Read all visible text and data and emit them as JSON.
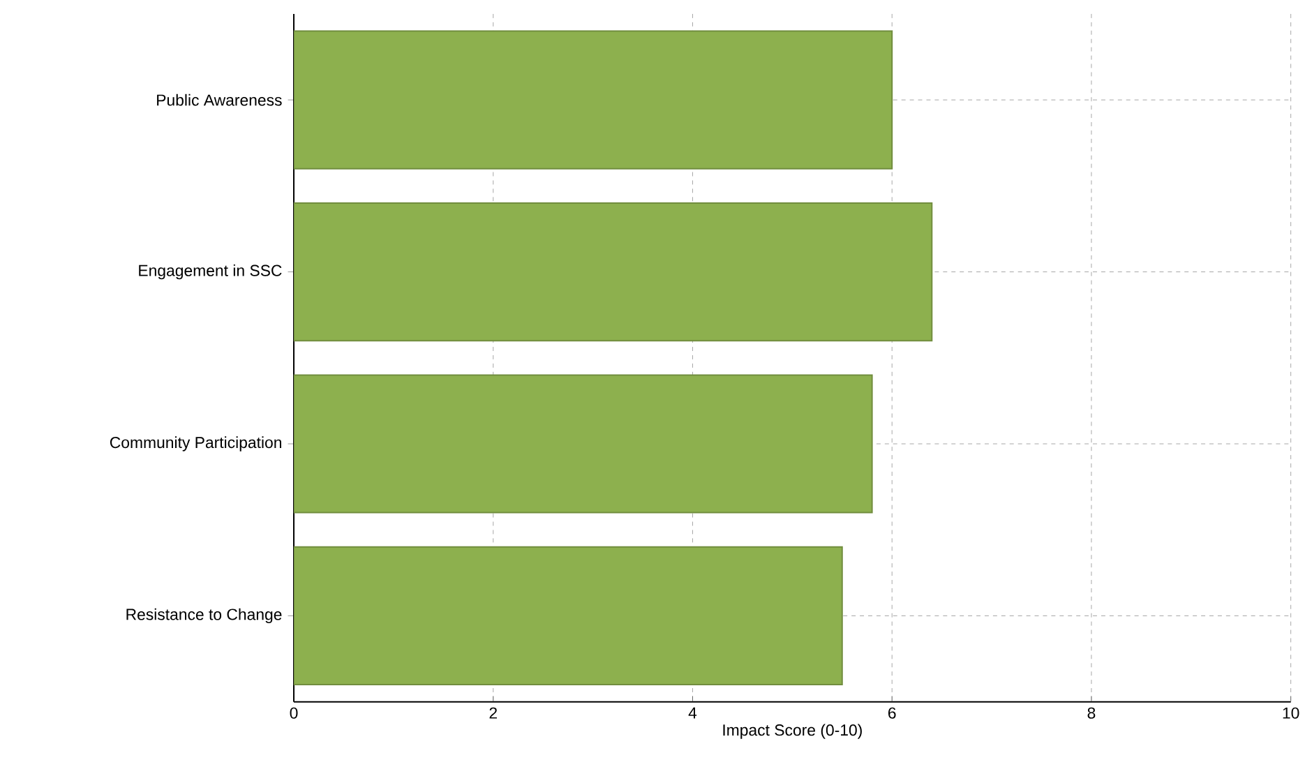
{
  "chart_data": {
    "type": "bar",
    "orientation": "horizontal",
    "xlabel": "Impact Score (0-10)",
    "categories": [
      "Public Awareness",
      "Engagement in SSC",
      "Community Participation",
      "Resistance to Change"
    ],
    "values": [
      6.0,
      6.4,
      5.8,
      5.5
    ],
    "color": "#8db04e",
    "xlim": [
      0,
      10
    ],
    "xticks": [
      0,
      2,
      4,
      6,
      8,
      10
    ],
    "grid": true
  }
}
